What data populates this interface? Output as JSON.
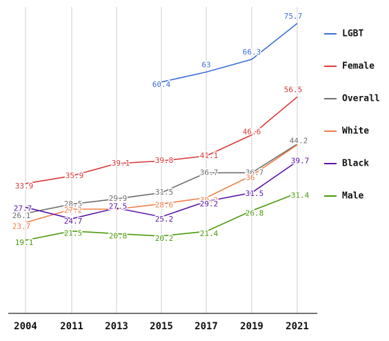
{
  "chart_data": {
    "type": "line",
    "title": "",
    "xlabel": "",
    "ylabel": "",
    "categories": [
      "2004",
      "2011",
      "2013",
      "2015",
      "2017",
      "2019",
      "2021"
    ],
    "ylim": [
      0,
      80
    ],
    "grid": "vertical",
    "legend": "right",
    "series": [
      {
        "name": "LGBT",
        "color": "#3a6fd8",
        "values": [
          null,
          null,
          null,
          60.4,
          63,
          66.3,
          75.7
        ],
        "labels": [
          "",
          "",
          "",
          "60.4",
          "63",
          "66.3",
          "75.7"
        ]
      },
      {
        "name": "Female",
        "color": "#d93a3a",
        "values": [
          33.9,
          35.9,
          39.1,
          39.8,
          41.1,
          46.6,
          56.5
        ],
        "labels": [
          "33.9",
          "35.9",
          "39.1",
          "39.8",
          "41.1",
          "46.6",
          "56.5"
        ]
      },
      {
        "name": "Overall",
        "color": "#6e6e6e",
        "values": [
          26.1,
          28.5,
          29.9,
          31.5,
          36.7,
          36.7,
          44.2
        ],
        "labels": [
          "26.1",
          "28.5",
          "29.9",
          "31.5",
          "36.7",
          "36.7",
          "44.2"
        ]
      },
      {
        "name": "White",
        "color": "#ef7c45",
        "values": [
          23.7,
          27.2,
          27.2,
          28.6,
          30.2,
          36,
          44
        ],
        "labels": [
          "23.7",
          "27.2",
          "",
          "28.6",
          "30.2",
          "36",
          ""
        ]
      },
      {
        "name": "Black",
        "color": "#5a14a8",
        "values": [
          27.7,
          24.7,
          27.5,
          25.2,
          29.2,
          31.5,
          39.7
        ],
        "labels": [
          "27.7",
          "24.7",
          "27.5",
          "25.2",
          "29.2",
          "31.5",
          "39.7"
        ]
      },
      {
        "name": "Male",
        "color": "#4a9a0a",
        "values": [
          19.1,
          21.5,
          20.8,
          20.2,
          21.4,
          26.8,
          31.4
        ],
        "labels": [
          "19.1",
          "21.5",
          "20.8",
          "20.2",
          "21.4",
          "26.8",
          "31.4"
        ]
      }
    ]
  }
}
